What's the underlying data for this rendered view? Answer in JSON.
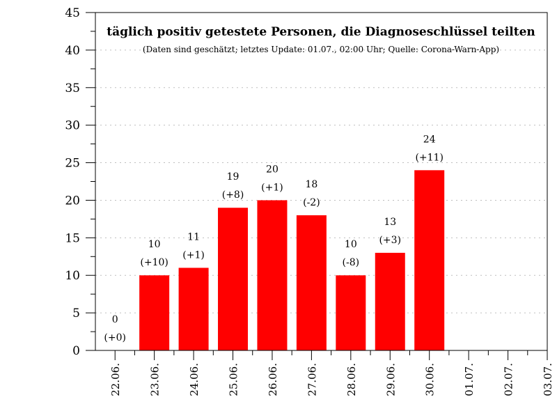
{
  "chart_data": {
    "type": "bar",
    "title": "täglich positiv getestete Personen, die Diagnoseschlüssel teilten",
    "subtitle": "(Daten sind geschätzt; letztes Update: 01.07., 02:00 Uhr; Quelle: Corona-Warn-App)",
    "xlabel": "",
    "ylabel": "",
    "categories": [
      "22.06.",
      "23.06.",
      "24.06.",
      "25.06.",
      "26.06.",
      "27.06.",
      "28.06.",
      "29.06.",
      "30.06.",
      "01.07.",
      "02.07.",
      "03.07."
    ],
    "values": [
      0,
      10,
      11,
      19,
      20,
      18,
      10,
      13,
      24,
      null,
      null,
      null
    ],
    "changes": [
      "(+0)",
      "(+10)",
      "(+1)",
      "(+8)",
      "(+1)",
      "(-2)",
      "(-8)",
      "(+3)",
      "(+11)",
      null,
      null,
      null
    ],
    "ylim": [
      0,
      45
    ],
    "yticks": [
      0,
      5,
      10,
      15,
      20,
      25,
      30,
      35,
      40,
      45
    ],
    "grid": true,
    "bar_color": "#ff0000"
  }
}
